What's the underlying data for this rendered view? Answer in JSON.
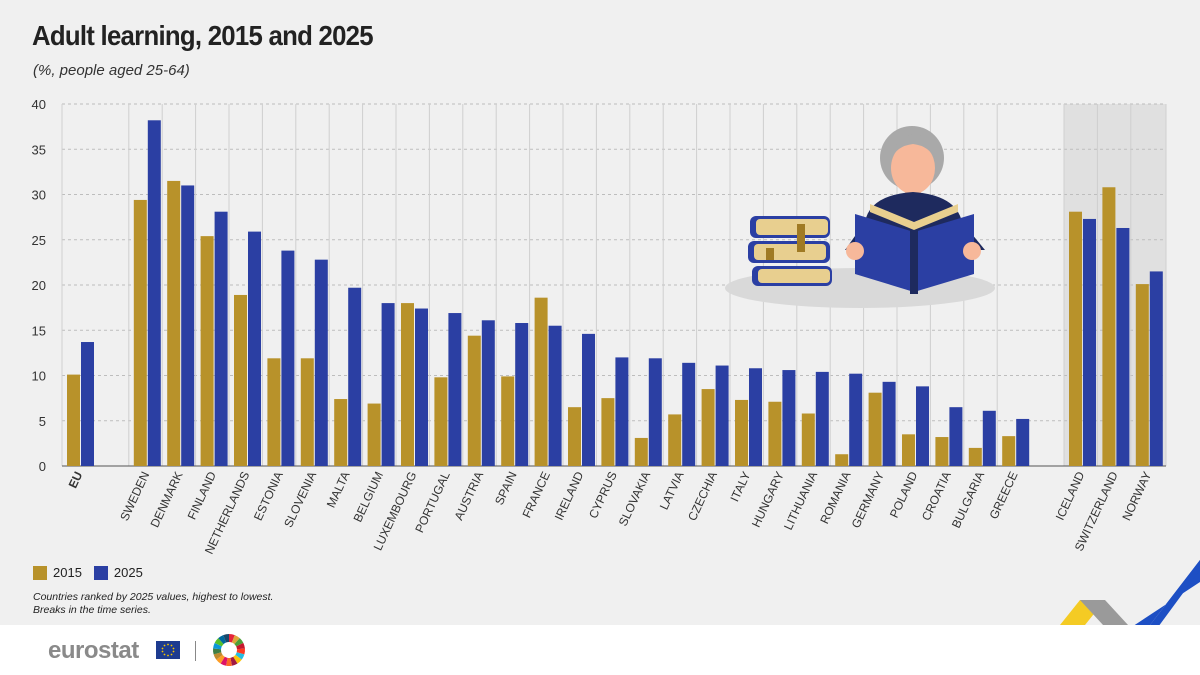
{
  "header": {
    "title": "Adult learning, 2015 and 2025",
    "subtitle": "(%, people aged 25-64)"
  },
  "legend": {
    "label_2015": "2015",
    "label_2025": "2025"
  },
  "notes": {
    "line1": "Countries ranked by 2025 values, highest to lowest.",
    "line2": "Breaks in the time series."
  },
  "footer": {
    "brand": "eurostat"
  },
  "colors": {
    "series_2015": "#b8922a",
    "series_2025": "#2b3fa3",
    "grid": "#bdbdbd",
    "non_eu_band": "#e0e0e0",
    "accent_yellow": "#f5c400",
    "accent_blue": "#1d4fc4"
  },
  "icons": [
    "illustration-woman-reading-icon",
    "books-stack-icon",
    "eu-flag-icon",
    "sdg-wheel-icon"
  ],
  "chart_data": {
    "type": "bar",
    "ylim": [
      0,
      40
    ],
    "yticks": [
      0,
      5,
      10,
      15,
      20,
      25,
      30,
      35,
      40
    ],
    "grid": true,
    "legend_position": "bottom-left",
    "categories": [
      "EU",
      "SWEDEN",
      "DENMARK",
      "FINLAND",
      "NETHERLANDS",
      "ESTONIA",
      "SLOVENIA",
      "MALTA",
      "BELGIUM",
      "LUXEMBOURG",
      "PORTUGAL",
      "AUSTRIA",
      "SPAIN",
      "FRANCE",
      "IRELAND",
      "CYPRUS",
      "SLOVAKIA",
      "LATVIA",
      "CZECHIA",
      "ITALY",
      "HUNGARY",
      "LITHUANIA",
      "ROMANIA",
      "GERMANY",
      "POLAND",
      "CROATIA",
      "BULGARIA",
      "GREECE",
      "ICELAND",
      "SWITZERLAND",
      "NORWAY"
    ],
    "series": [
      {
        "name": "2015",
        "values": [
          10.1,
          29.4,
          31.5,
          25.4,
          18.9,
          11.9,
          11.9,
          7.4,
          6.9,
          18.0,
          9.8,
          14.4,
          9.9,
          18.6,
          6.5,
          7.5,
          3.1,
          5.7,
          8.5,
          7.3,
          7.1,
          5.8,
          1.3,
          8.1,
          3.5,
          3.2,
          2.0,
          3.3,
          28.1,
          30.8,
          20.1
        ]
      },
      {
        "name": "2025",
        "values": [
          13.7,
          38.2,
          31.0,
          28.1,
          25.9,
          23.8,
          22.8,
          19.7,
          18.0,
          17.4,
          16.9,
          16.1,
          15.8,
          15.5,
          14.6,
          12.0,
          11.9,
          11.4,
          11.1,
          10.8,
          10.6,
          10.4,
          10.2,
          9.3,
          8.8,
          6.5,
          6.1,
          5.2,
          27.3,
          26.3,
          21.5
        ]
      }
    ]
  }
}
